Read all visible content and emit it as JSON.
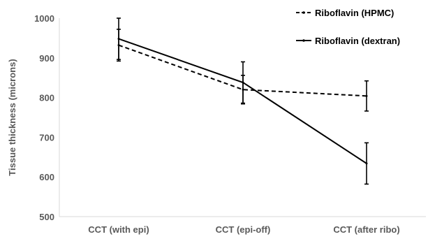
{
  "chart_data": {
    "type": "line",
    "title": "",
    "xlabel": "",
    "ylabel": "Tissue thickness (microns)",
    "ylim": [
      500,
      1000
    ],
    "yticks": [
      500,
      600,
      700,
      800,
      900,
      1000
    ],
    "categories": [
      "CCT (with epi)",
      "CCT (epi-off)",
      "CCT (after ribo)"
    ],
    "grid": false,
    "legend_position": "top-right",
    "series": [
      {
        "name": "Riboflavin (HPMC)",
        "style": "dashed",
        "color": "#000000",
        "values": [
          932,
          820,
          804
        ],
        "error": [
          40,
          36,
          38
        ]
      },
      {
        "name": "Riboflavin (dextran)",
        "style": "solid",
        "color": "#000000",
        "values": [
          948,
          838,
          634
        ],
        "error": [
          52,
          52,
          52
        ]
      }
    ]
  }
}
